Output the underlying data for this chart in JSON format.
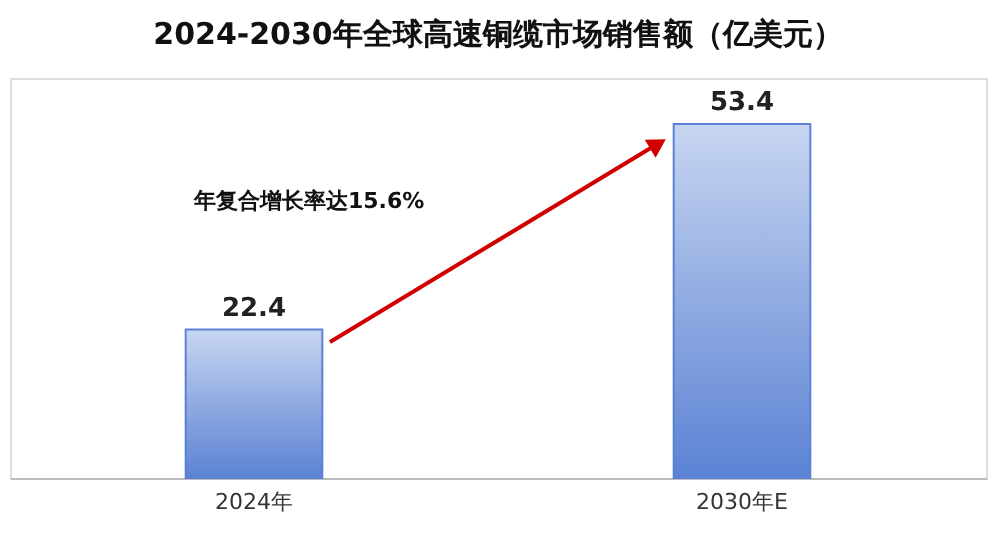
{
  "chart_data": {
    "type": "bar",
    "title": "2024-2030年全球高速铜缆市场销售额（亿美元）",
    "categories": [
      "2024年",
      "2030年E"
    ],
    "values": [
      22.4,
      53.4
    ],
    "color": "#5b82d4",
    "data_labels": true,
    "tick_labels": "x",
    "annotations": [
      "年复合增长率达15.6%"
    ]
  }
}
